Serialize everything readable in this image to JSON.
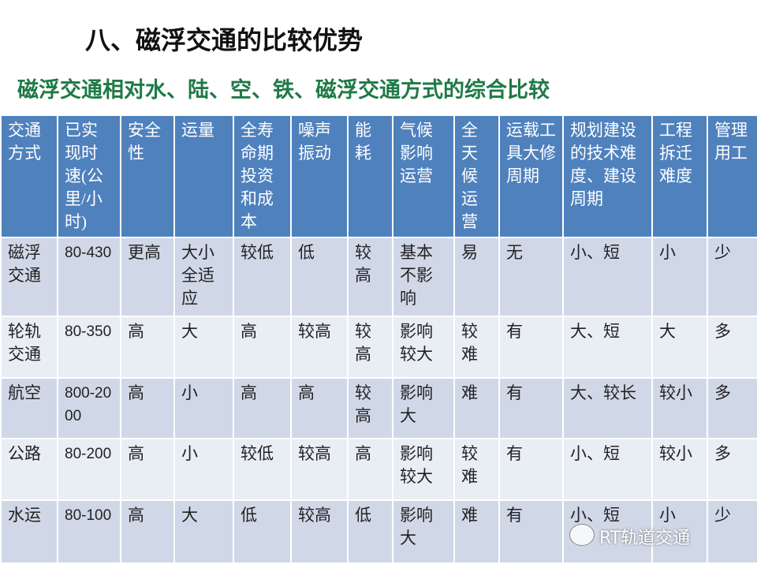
{
  "header": {
    "title": "八、磁浮交通的比较优势",
    "subtitle": "磁浮交通相对水、陆、空、铁、磁浮交通方式的综合比较"
  },
  "table": {
    "columns": [
      "交通方式",
      "已实现时速(公里/小时)",
      "安全性",
      "运量",
      "全寿命期投资和成本",
      "噪声振动",
      "能耗",
      "气候影响运营",
      "全天候运营",
      "运载工具大修周期",
      "规划建设的技术难度、建设周期",
      "工程拆迁难度",
      "管理用工"
    ],
    "rows": [
      [
        "磁浮交通",
        "80-430",
        "更高",
        "大小全适应",
        "较低",
        "低",
        "较高",
        "基本不影响",
        "易",
        "无",
        "小、短",
        "小",
        "少"
      ],
      [
        "轮轨交通",
        "80-350",
        "高",
        "大",
        "高",
        "较高",
        "较高",
        "影响较大",
        "较难",
        "有",
        "大、短",
        "大",
        "多"
      ],
      [
        "航空",
        "800-2000",
        "高",
        "小",
        "高",
        "高",
        "较高",
        "影响大",
        "难",
        "有",
        "大、较长",
        "较小",
        "多"
      ],
      [
        "公路",
        "80-200",
        "高",
        "小",
        "较低",
        "较高",
        "高",
        "影响较大",
        "较难",
        "有",
        "小、短",
        "较小",
        "多"
      ],
      [
        "水运",
        "80-100",
        "高",
        "大",
        "低",
        "较高",
        "低",
        "影响大",
        "难",
        "有",
        "小、短",
        "小",
        "少"
      ]
    ]
  },
  "watermark": "RT轨道交通"
}
